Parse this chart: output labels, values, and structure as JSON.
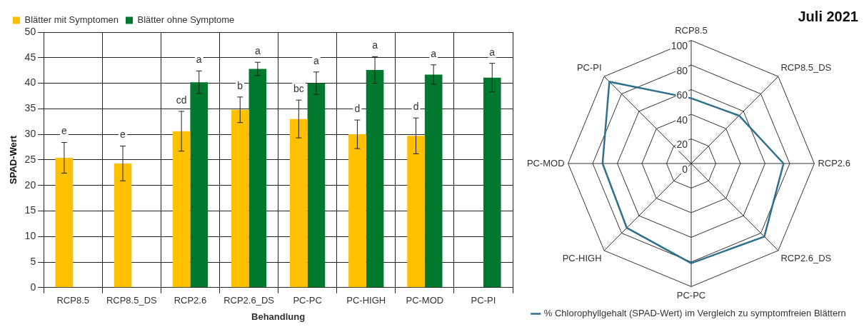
{
  "chart_data": [
    {
      "type": "bar",
      "xlabel": "Behandlung",
      "ylabel": "SPAD-Wert",
      "categories": [
        "RCP8.5",
        "RCP8.5_DS",
        "RCP2.6",
        "RCP2.6_DS",
        "PC-PC",
        "PC-HIGH",
        "PC-MOD",
        "PC-PI"
      ],
      "series": [
        {
          "name": "Blätter mit Symptomen",
          "color": "#ffc000",
          "values": [
            25.4,
            24.3,
            30.6,
            34.8,
            33.0,
            30.0,
            29.7,
            null
          ],
          "errors": [
            3.0,
            3.4,
            3.9,
            2.5,
            3.7,
            2.8,
            3.5,
            null
          ]
        },
        {
          "name": "Blätter ohne Symptome",
          "color": "#00782d",
          "values": [
            null,
            null,
            40.2,
            42.8,
            40.0,
            42.6,
            41.7,
            41.1
          ],
          "errors": [
            null,
            null,
            2.2,
            1.3,
            2.2,
            2.6,
            1.9,
            2.8
          ]
        }
      ],
      "ylim": [
        0,
        50
      ],
      "yticks": [
        0,
        5,
        10,
        15,
        20,
        25,
        30,
        35,
        40,
        45,
        50
      ],
      "grid": true,
      "legend": "top left",
      "annotations": [
        {
          "text": "e",
          "x": "RCP8.5",
          "y": 25.4
        },
        {
          "text": "e",
          "x": "RCP8.5_DS",
          "y": 24.3
        },
        {
          "text": "cd",
          "x": "RCP2.6",
          "y": 30.6
        },
        {
          "text": "a",
          "x": "RCP2.6",
          "y": 40.2
        },
        {
          "text": "b",
          "x": "RCP2.6_DS",
          "y": 34.8
        },
        {
          "text": "a",
          "x": "RCP2.6_DS",
          "y": 42.8
        },
        {
          "text": "bc",
          "x": "PC-PC",
          "y": 33.0
        },
        {
          "text": "a",
          "x": "PC-PC",
          "y": 40.0
        },
        {
          "text": "d",
          "x": "PC-HIGH",
          "y": 30.0
        },
        {
          "text": "a",
          "x": "PC-HIGH",
          "y": 42.6
        },
        {
          "text": "d",
          "x": "PC-MOD",
          "y": 29.7
        },
        {
          "text": "a",
          "x": "PC-MOD",
          "y": 41.7
        },
        {
          "text": "a",
          "x": "PC-PI",
          "y": 41.1
        }
      ]
    },
    {
      "type": "radar",
      "title": "Juli 2021",
      "categories": [
        "RCP8.5",
        "RCP8.5_DS",
        "RCP2.6",
        "RCP2.6_DS",
        "PC-PC",
        "PC-HIGH",
        "PC-MOD",
        "PC-PI"
      ],
      "series": [
        {
          "name": "% Chlorophyllgehalt (SPAD-Wert) im Vergleich zu symptomfreien Blättern",
          "color": "#2e6f8e",
          "values": [
            53,
            55,
            75,
            84,
            81,
            74,
            72,
            94
          ]
        }
      ],
      "ylim": [
        0,
        100
      ],
      "yticks": [
        0,
        20,
        40,
        60,
        80,
        100
      ],
      "grid": true,
      "legend": "bottom",
      "marker": "none"
    }
  ]
}
